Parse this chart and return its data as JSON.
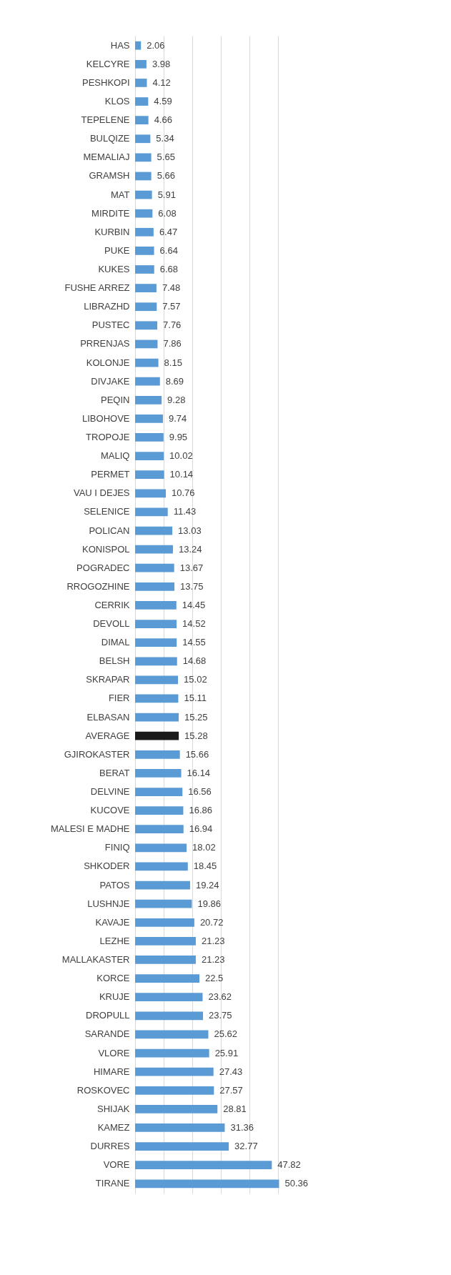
{
  "chart_data": {
    "type": "bar",
    "orientation": "horizontal",
    "data_labels": true,
    "grid": "x",
    "tick_labels": "y",
    "categories": [
      "HAS",
      "KELCYRE",
      "PESHKOPI",
      "KLOS",
      "TEPELENE",
      "BULQIZE",
      "MEMALIAJ",
      "GRAMSH",
      "MAT",
      "MIRDITE",
      "KURBIN",
      "PUKE",
      "KUKES",
      "FUSHE ARREZ",
      "LIBRAZHD",
      "PUSTEC",
      "PRRENJAS",
      "KOLONJE",
      "DIVJAKE",
      "PEQIN",
      "LIBOHOVE",
      "TROPOJE",
      "MALIQ",
      "PERMET",
      "VAU I DEJES",
      "SELENICE",
      "POLICAN",
      "KONISPOL",
      "POGRADEC",
      "RROGOZHINE",
      "CERRIK",
      "DEVOLL",
      "DIMAL",
      "BELSH",
      "SKRAPAR",
      "FIER",
      "ELBASAN",
      "AVERAGE",
      "GJIROKASTER",
      "BERAT",
      "DELVINE",
      "KUCOVE",
      "MALESI E MADHE",
      "FINIQ",
      "SHKODER",
      "PATOS",
      "LUSHNJE",
      "KAVAJE",
      "LEZHE",
      "MALLAKASTER",
      "KORCE",
      "KRUJE",
      "DROPULL",
      "SARANDE",
      "VLORE",
      "HIMARE",
      "ROSKOVEC",
      "SHIJAK",
      "KAMEZ",
      "DURRES",
      "VORE",
      "TIRANE"
    ],
    "values": [
      2.06,
      3.98,
      4.12,
      4.59,
      4.66,
      5.34,
      5.65,
      5.66,
      5.91,
      6.08,
      6.47,
      6.64,
      6.68,
      7.48,
      7.57,
      7.76,
      7.86,
      8.15,
      8.69,
      9.28,
      9.74,
      9.95,
      10.02,
      10.14,
      10.76,
      11.43,
      13.03,
      13.24,
      13.67,
      13.75,
      14.45,
      14.52,
      14.55,
      14.68,
      15.02,
      15.11,
      15.25,
      15.28,
      15.66,
      16.14,
      16.56,
      16.86,
      16.94,
      18.02,
      18.45,
      19.24,
      19.86,
      20.72,
      21.23,
      21.23,
      22.5,
      23.62,
      23.75,
      25.62,
      25.91,
      27.43,
      27.57,
      28.81,
      31.36,
      32.77,
      47.82,
      50.36
    ],
    "colors": [
      "#5b9bd5",
      "#5b9bd5",
      "#5b9bd5",
      "#5b9bd5",
      "#5b9bd5",
      "#5b9bd5",
      "#5b9bd5",
      "#5b9bd5",
      "#5b9bd5",
      "#5b9bd5",
      "#5b9bd5",
      "#5b9bd5",
      "#5b9bd5",
      "#5b9bd5",
      "#5b9bd5",
      "#5b9bd5",
      "#5b9bd5",
      "#5b9bd5",
      "#5b9bd5",
      "#5b9bd5",
      "#5b9bd5",
      "#5b9bd5",
      "#5b9bd5",
      "#5b9bd5",
      "#5b9bd5",
      "#5b9bd5",
      "#5b9bd5",
      "#5b9bd5",
      "#5b9bd5",
      "#5b9bd5",
      "#5b9bd5",
      "#5b9bd5",
      "#5b9bd5",
      "#5b9bd5",
      "#5b9bd5",
      "#5b9bd5",
      "#5b9bd5",
      "#1a1a1a",
      "#5b9bd5",
      "#5b9bd5",
      "#5b9bd5",
      "#5b9bd5",
      "#5b9bd5",
      "#5b9bd5",
      "#5b9bd5",
      "#5b9bd5",
      "#5b9bd5",
      "#5b9bd5",
      "#5b9bd5",
      "#5b9bd5",
      "#5b9bd5",
      "#5b9bd5",
      "#5b9bd5",
      "#5b9bd5",
      "#5b9bd5",
      "#5b9bd5",
      "#5b9bd5",
      "#5b9bd5",
      "#5b9bd5",
      "#5b9bd5",
      "#5b9bd5",
      "#5b9bd5"
    ]
  }
}
